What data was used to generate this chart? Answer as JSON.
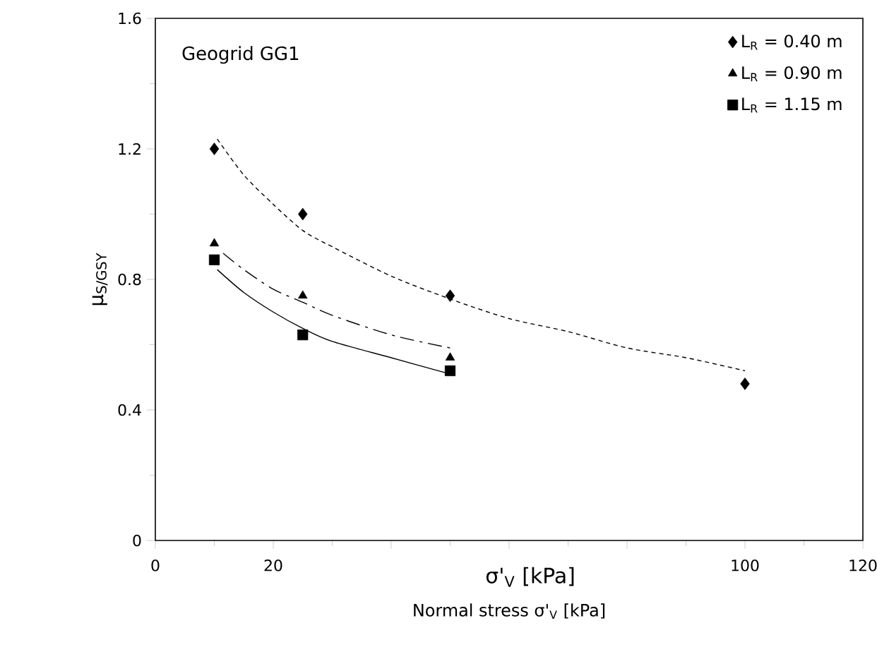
{
  "chart_data": {
    "type": "scatter",
    "xlabel": "Normal stress σ'$_{V}$ [kPa]",
    "ylabel": "μ$_{S/GSY}$",
    "annotations": [
      "Geogrid GG1",
      "σ'$_{V}$  [kPa]"
    ],
    "xlim": [
      0,
      120
    ],
    "ylim": [
      0,
      1.6
    ],
    "xticks": [
      0,
      20,
      {
        "value": 40,
        "label": null
      },
      {
        "value": 60,
        "label": null
      },
      {
        "value": 80,
        "label": null
      },
      100,
      120
    ],
    "yticks": [
      0,
      0.4,
      0.8,
      1.2,
      1.6
    ],
    "legend": "top right",
    "grid": false,
    "series": [
      {
        "name": "L$_{R}$ = 0.40 m",
        "color": "#000000",
        "marker": "diamond",
        "x": [
          10,
          25,
          50,
          100
        ],
        "values": [
          1.2,
          1.0,
          0.75,
          0.48
        ]
      },
      {
        "name": "L$_{R}$ = 0.90 m",
        "color": "#000000",
        "marker": "triangle",
        "x": [
          10,
          25,
          50
        ],
        "values": [
          0.91,
          0.75,
          0.56
        ]
      },
      {
        "name": "L$_{R}$ = 1.15 m",
        "color": "#000000",
        "marker": "square",
        "x": [
          10,
          25,
          50
        ],
        "values": [
          0.86,
          0.63,
          0.52
        ]
      },
      {
        "type": "line",
        "color": "#000000",
        "marker": "none",
        "line_style": "dashed",
        "x": [
          10.5,
          15,
          20,
          25,
          30,
          40,
          50,
          60,
          70,
          80,
          90,
          100
        ],
        "values": [
          1.23,
          1.12,
          1.03,
          0.95,
          0.9,
          0.81,
          0.74,
          0.68,
          0.64,
          0.59,
          0.56,
          0.52
        ]
      },
      {
        "type": "line",
        "color": "#000000",
        "marker": "none",
        "line_style": "dashdot",
        "x": [
          11.5,
          15,
          20,
          25,
          30,
          40,
          50
        ],
        "values": [
          0.88,
          0.83,
          0.77,
          0.73,
          0.69,
          0.63,
          0.59
        ]
      },
      {
        "type": "line",
        "color": "#000000",
        "marker": "none",
        "line_style": "solid",
        "x": [
          10.5,
          15,
          20,
          25,
          30,
          40,
          50
        ],
        "values": [
          0.83,
          0.76,
          0.7,
          0.65,
          0.61,
          0.56,
          0.51
        ]
      }
    ]
  }
}
